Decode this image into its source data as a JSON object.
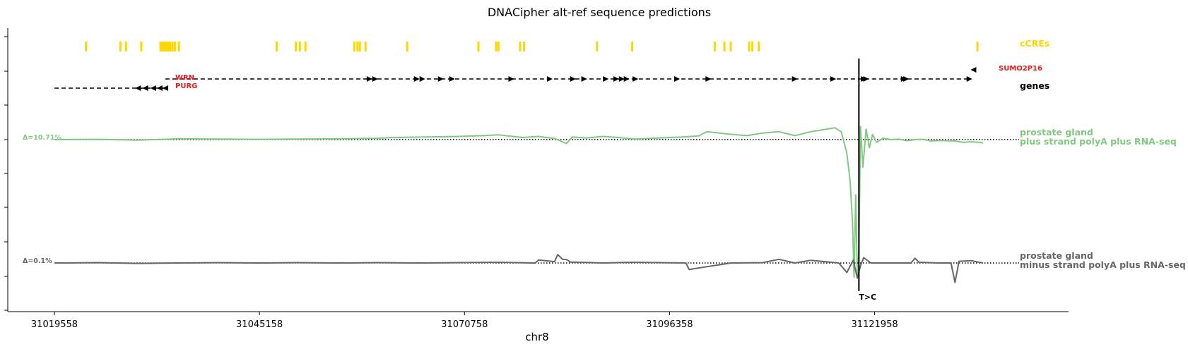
{
  "chart_data": {
    "type": "line",
    "title": "DNACipher alt-ref sequence predictions",
    "xlabel": "chr8",
    "chromosome": "chr8",
    "xlim": [
      31019558,
      31140000
    ],
    "x_ticks": [
      31019558,
      31045158,
      31070758,
      31096358,
      31121958
    ],
    "x_tick_labels": [
      "31019558",
      "31045158",
      "31070758",
      "31096358",
      "31121958"
    ],
    "variant": {
      "position": 31120000,
      "label": "T>C"
    },
    "ccres": {
      "label": "cCREs",
      "color": "#ffd700",
      "positions": [
        31023500,
        31027800,
        31028500,
        31030400,
        31032800,
        31033000,
        31033200,
        31033400,
        31033600,
        31033800,
        31034000,
        31034300,
        31034600,
        31035100,
        31047300,
        31049700,
        31050200,
        31050900,
        31057000,
        31057400,
        31057700,
        31058400,
        31063600,
        31072500,
        31074700,
        31075000,
        31077700,
        31078200,
        31087300,
        31091700,
        31102000,
        31103200,
        31104000,
        31106300,
        31106700,
        31107500,
        31134800
      ]
    },
    "genes": {
      "label": "genes",
      "color": "#000000",
      "items": [
        {
          "name": "WRN",
          "start": 31033400,
          "end": 31134000,
          "strand": "+",
          "lane": 1,
          "arrows": [
            31058900,
            31059600,
            31064800,
            31065500,
            31067800,
            31069200,
            31076600,
            31081400,
            31084300,
            31085700,
            31088400,
            31089700,
            31090400,
            31091000,
            31092100,
            31097300,
            31101200,
            31112000,
            31116800,
            31120600,
            31120900,
            31125600,
            31125900,
            31133800
          ]
        },
        {
          "name": "PURG",
          "start": 31019558,
          "end": 31033600,
          "strand": "-",
          "lane": 2,
          "arrows": [
            31030000,
            31030900,
            31031900,
            31032700,
            31033400
          ]
        },
        {
          "name": "SUMO2P16",
          "start": 31134000,
          "end": 31134800,
          "strand": "-",
          "lane": 0,
          "arrows": [
            31134300
          ]
        }
      ]
    },
    "series": [
      {
        "name": "prostate gland\nplus strand polyA plus RNA-seq",
        "label_line1": "prostate gland",
        "label_line2": "plus strand polyA plus RNA-seq",
        "delta": "Δ=10.71%",
        "color": "#82c882",
        "baseline": 0,
        "ylim": [
          -0.55,
          0.11
        ],
        "x": [
          31019558,
          31025000,
          31030000,
          31035000,
          31040000,
          31045000,
          31050000,
          31055000,
          31060000,
          31062000,
          31066000,
          31070000,
          31073000,
          31075000,
          31078000,
          31080000,
          31082000,
          31083500,
          31084200,
          31086000,
          31088000,
          31090000,
          31092000,
          31095000,
          31098000,
          31100000,
          31101000,
          31104000,
          31106000,
          31108000,
          31110000,
          31112000,
          31114000,
          31116000,
          31117000,
          31117800,
          31118500,
          31118900,
          31119200,
          31119400,
          31119600,
          31119800,
          31120000,
          31120200,
          31120500,
          31120900,
          31121300,
          31121700,
          31122200,
          31123000,
          31124000,
          31125000,
          31126000,
          31127000,
          31128000,
          31129000,
          31130000,
          31131000,
          31132000,
          31133000,
          31134000,
          31135000,
          31135500
        ],
        "values": [
          0.0,
          0.001,
          -0.002,
          0.003,
          0.002,
          0.001,
          0.002,
          0.003,
          0.005,
          0.008,
          0.01,
          0.012,
          0.015,
          0.018,
          0.008,
          0.012,
          0.004,
          -0.014,
          0.01,
          0.006,
          0.012,
          0.008,
          0.002,
          0.006,
          0.01,
          0.014,
          0.03,
          0.02,
          0.015,
          0.025,
          0.03,
          0.015,
          0.03,
          0.04,
          0.045,
          0.03,
          -0.05,
          -0.15,
          -0.3,
          -0.5,
          -0.2,
          -0.5,
          -0.4,
          0.05,
          -0.1,
          0.04,
          -0.03,
          0.02,
          -0.01,
          0.005,
          0.0,
          0.002,
          -0.004,
          0.0,
          0.001,
          -0.005,
          -0.003,
          -0.004,
          -0.005,
          -0.01,
          -0.008,
          -0.01,
          -0.012
        ]
      },
      {
        "name": "prostate gland\nminus strand polyA plus RNA-seq",
        "label_line1": "prostate gland",
        "label_line2": "minus strand polyA plus RNA-seq",
        "delta": "Δ=0.1%",
        "color": "#666666",
        "baseline": 0,
        "ylim": [
          -0.0065,
          0.0065
        ],
        "x": [
          31019558,
          31025000,
          31030000,
          31035000,
          31040000,
          31045000,
          31050000,
          31055000,
          31060000,
          31065000,
          31070000,
          31075000,
          31079600,
          31080000,
          31082000,
          31082400,
          31083000,
          31083500,
          31084000,
          31088000,
          31092000,
          31098400,
          31098800,
          31104000,
          31108000,
          31110000,
          31112000,
          31114000,
          31117500,
          31118500,
          31119300,
          31119800,
          31120200,
          31120600,
          31121500,
          31123000,
          31126500,
          31127000,
          31127500,
          31130000,
          31131500,
          31132000,
          31132500,
          31134000,
          31135500
        ],
        "values": [
          0.0,
          0.0001,
          -0.0001,
          0.0,
          0.0001,
          0.0,
          0.0001,
          0.0,
          0.0001,
          0.0,
          0.0001,
          0.0002,
          0.0,
          0.0009,
          0.0004,
          0.0025,
          0.0011,
          0.001,
          0.0003,
          0.0,
          0.0002,
          0.0,
          -0.0015,
          0.0,
          0.0001,
          0.0011,
          0.0,
          0.0008,
          0.0,
          -0.0022,
          0.0009,
          -0.0035,
          -0.0006,
          0.0016,
          0.0,
          0.0,
          0.0,
          0.0014,
          0.0002,
          0.0,
          0.0,
          -0.0045,
          0.0005,
          0.0007,
          0.0
        ]
      }
    ]
  }
}
